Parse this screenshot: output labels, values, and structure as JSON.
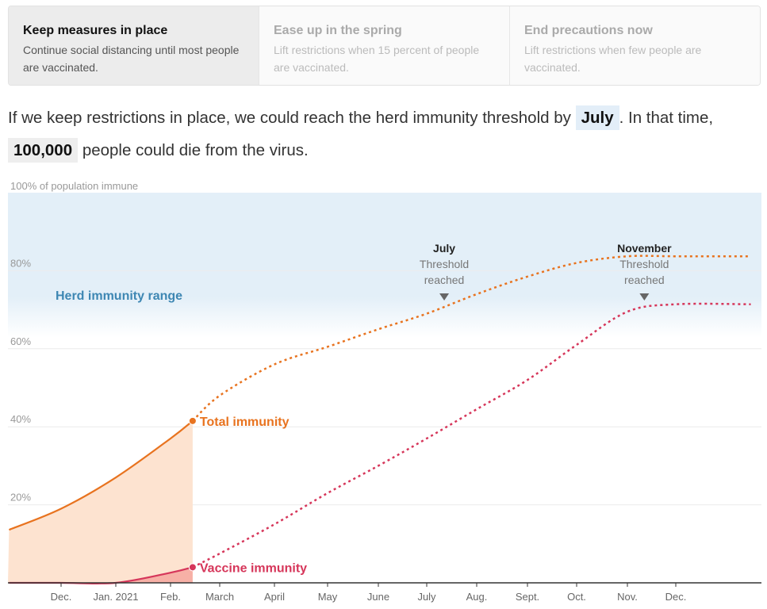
{
  "tabs": [
    {
      "title": "Keep measures in place",
      "desc": "Continue social distancing until most people are vaccinated.",
      "active": true
    },
    {
      "title": "Ease up in the spring",
      "desc": "Lift restrictions when 15 percent of people are vaccinated.",
      "active": false
    },
    {
      "title": "End precautions now",
      "desc": "Lift restrictions when few people are vaccinated.",
      "active": false
    }
  ],
  "summary": {
    "part1": "If we keep restrictions in place, we could reach the herd immunity threshold by",
    "month": "July",
    "part2": ". In that time,",
    "deaths": "100,000",
    "part3": "people could die from the virus."
  },
  "chart_data": {
    "type": "line",
    "title": "",
    "ylabel": "100% of population immune",
    "ylim": [
      0,
      100
    ],
    "yticks": [
      {
        "value": 80,
        "label": "80%"
      },
      {
        "value": 60,
        "label": "60%"
      },
      {
        "value": 40,
        "label": "40%"
      },
      {
        "value": 20,
        "label": "20%"
      }
    ],
    "xticks": [
      "Dec.",
      "Jan. 2021",
      "Feb.",
      "March",
      "April",
      "May",
      "June",
      "July",
      "Aug.",
      "Sept.",
      "Oct.",
      "Nov.",
      "Dec."
    ],
    "band": {
      "label": "Herd immunity range",
      "from": 70,
      "to": 100,
      "color": "#e3eff8"
    },
    "series": [
      {
        "name": "Total immunity",
        "color": "#e8731f",
        "fill": "#fde3d0",
        "actual": [
          [
            -0.95,
            13.6
          ],
          [
            0,
            19
          ],
          [
            1,
            27
          ],
          [
            2,
            37
          ],
          [
            2.45,
            41.5
          ]
        ],
        "projected": [
          [
            2.45,
            41.5
          ],
          [
            3,
            48
          ],
          [
            4,
            56
          ],
          [
            5,
            60.5
          ],
          [
            6,
            65
          ],
          [
            7,
            69
          ],
          [
            8,
            74
          ],
          [
            9,
            78.5
          ],
          [
            10,
            82
          ],
          [
            11,
            83.7
          ],
          [
            12,
            83.7
          ],
          [
            13.5,
            83.7
          ]
        ]
      },
      {
        "name": "Vaccine immunity",
        "color": "#d6365a",
        "fill": "#f7b0a6",
        "actual": [
          [
            -0.95,
            0
          ],
          [
            0,
            0
          ],
          [
            1,
            0
          ],
          [
            2,
            2.6
          ],
          [
            2.45,
            4
          ]
        ],
        "projected": [
          [
            2.45,
            4
          ],
          [
            3,
            7.5
          ],
          [
            4,
            15
          ],
          [
            5,
            23
          ],
          [
            6,
            30
          ],
          [
            7,
            37
          ],
          [
            8,
            44.5
          ],
          [
            9,
            52
          ],
          [
            10,
            61
          ],
          [
            11,
            69.5
          ],
          [
            12,
            71.4
          ],
          [
            13.5,
            71.4
          ]
        ]
      }
    ],
    "annotations": [
      {
        "title": "July",
        "text1": "Threshold",
        "text2": "reached",
        "x": 7.35,
        "series": "Total immunity"
      },
      {
        "title": "November",
        "text1": "Threshold",
        "text2": "reached",
        "x": 11.35,
        "series": "Vaccine immunity"
      }
    ],
    "grid": true
  }
}
